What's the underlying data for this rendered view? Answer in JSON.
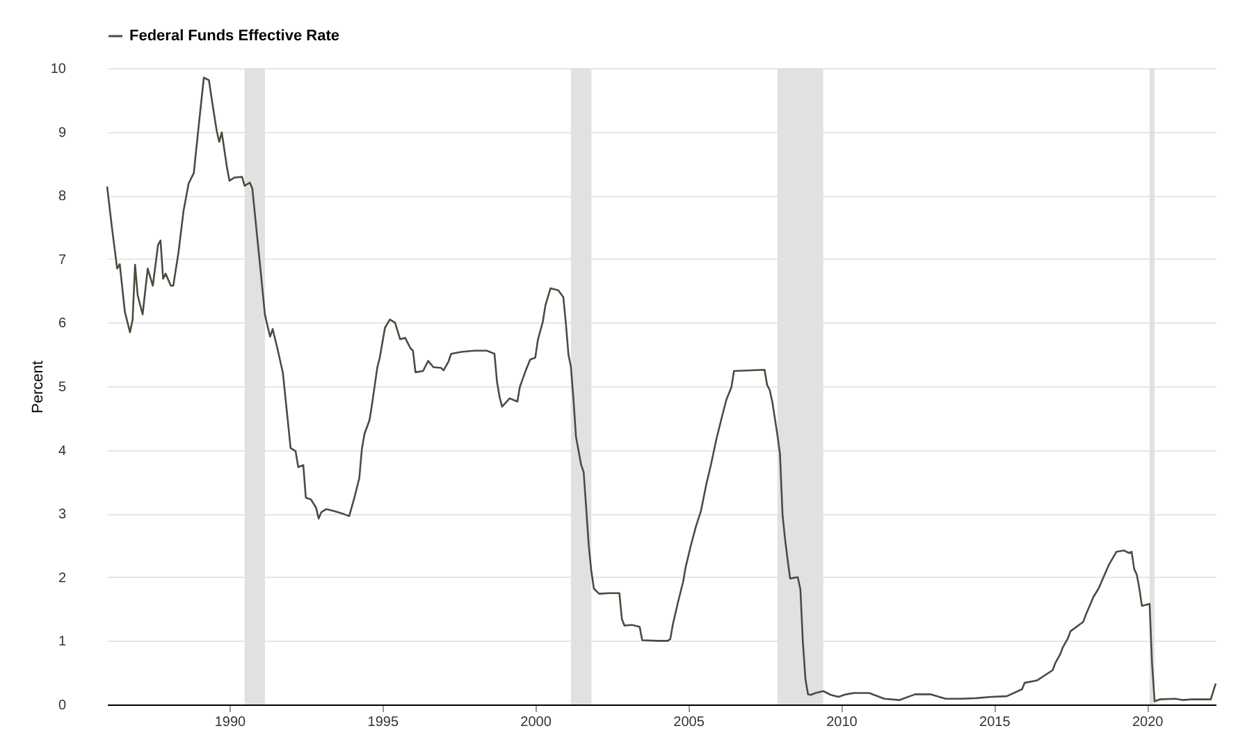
{
  "chart_data": {
    "type": "line",
    "ylabel": "Percent",
    "legend": "top left",
    "grid": "y",
    "line_style": "solid",
    "xlim": [
      "1986-01",
      "2022-04"
    ],
    "xticks": [
      "1990",
      "1995",
      "2000",
      "2005",
      "2010",
      "2015",
      "2020"
    ],
    "ylim": [
      0,
      10
    ],
    "yticks": [
      0,
      1,
      2,
      3,
      4,
      5,
      6,
      7,
      8,
      9,
      10
    ],
    "bands": [
      {
        "axis": "x",
        "from": "1990-07",
        "to": "1991-03",
        "color": "#e1e1e1"
      },
      {
        "axis": "x",
        "from": "2001-03",
        "to": "2001-11",
        "color": "#e1e1e1"
      },
      {
        "axis": "x",
        "from": "2007-12",
        "to": "2009-06",
        "color": "#e1e1e1"
      },
      {
        "axis": "x",
        "from": "2020-02",
        "to": "2020-04",
        "color": "#e1e1e1"
      }
    ],
    "series": [
      {
        "name": "Federal Funds Effective Rate",
        "color": "#4b4b3f",
        "x": [
          "1986-01",
          "1986-03",
          "1986-05",
          "1986-06",
          "1986-08",
          "1986-10",
          "1986-11",
          "1986-12",
          "1987-01",
          "1987-03",
          "1987-05",
          "1987-07",
          "1987-09",
          "1987-10",
          "1987-11",
          "1987-12",
          "1988-02",
          "1988-03",
          "1988-05",
          "1988-07",
          "1988-09",
          "1988-11",
          "1989-01",
          "1989-03",
          "1989-05",
          "1989-06",
          "1989-08",
          "1989-09",
          "1989-10",
          "1989-12",
          "1990-01",
          "1990-03",
          "1990-06",
          "1990-07",
          "1990-09",
          "1990-10",
          "1990-12",
          "1991-01",
          "1991-03",
          "1991-05",
          "1991-06",
          "1991-08",
          "1991-10",
          "1991-12",
          "1992-01",
          "1992-03",
          "1992-04",
          "1992-06",
          "1992-07",
          "1992-09",
          "1992-11",
          "1992-12",
          "1993-01",
          "1993-03",
          "1993-06",
          "1993-10",
          "1993-12",
          "1994-02",
          "1994-04",
          "1994-05",
          "1994-06",
          "1994-08",
          "1994-09",
          "1994-11",
          "1994-12",
          "1995-02",
          "1995-04",
          "1995-06",
          "1995-08",
          "1995-10",
          "1995-12",
          "1996-01",
          "1996-02",
          "1996-05",
          "1996-07",
          "1996-09",
          "1996-12",
          "1997-01",
          "1997-03",
          "1997-04",
          "1997-08",
          "1998-01",
          "1998-06",
          "1998-09",
          "1998-10",
          "1998-11",
          "1998-12",
          "1999-03",
          "1999-06",
          "1999-07",
          "1999-09",
          "1999-11",
          "2000-01",
          "2000-02",
          "2000-04",
          "2000-05",
          "2000-07",
          "2000-10",
          "2000-12",
          "2001-01",
          "2001-02",
          "2001-03",
          "2001-04",
          "2001-05",
          "2001-07",
          "2001-08",
          "2001-09",
          "2001-10",
          "2001-11",
          "2001-12",
          "2002-02",
          "2002-06",
          "2002-10",
          "2002-11",
          "2002-12",
          "2003-03",
          "2003-06",
          "2003-07",
          "2004-01",
          "2004-05",
          "2004-06",
          "2004-07",
          "2004-09",
          "2004-11",
          "2004-12",
          "2005-02",
          "2005-04",
          "2005-06",
          "2005-08",
          "2005-10",
          "2005-12",
          "2006-02",
          "2006-04",
          "2006-06",
          "2006-07",
          "2007-07",
          "2007-08",
          "2007-09",
          "2007-10",
          "2007-12",
          "2008-01",
          "2008-02",
          "2008-03",
          "2008-04",
          "2008-05",
          "2008-08",
          "2008-09",
          "2008-10",
          "2008-11",
          "2008-12",
          "2009-01",
          "2009-03",
          "2009-06",
          "2009-09",
          "2009-12",
          "2010-03",
          "2010-06",
          "2010-12",
          "2011-06",
          "2011-12",
          "2012-06",
          "2012-12",
          "2013-06",
          "2013-12",
          "2014-06",
          "2014-12",
          "2015-06",
          "2015-12",
          "2016-01",
          "2016-06",
          "2016-12",
          "2017-01",
          "2017-03",
          "2017-04",
          "2017-06",
          "2017-07",
          "2017-12",
          "2018-01",
          "2018-04",
          "2018-06",
          "2018-07",
          "2018-10",
          "2019-01",
          "2019-04",
          "2019-06",
          "2019-07",
          "2019-08",
          "2019-09",
          "2019-10",
          "2019-11",
          "2020-02",
          "2020-03",
          "2020-04",
          "2020-06",
          "2020-12",
          "2021-03",
          "2021-06",
          "2021-09",
          "2021-12",
          "2022-02",
          "2022-03",
          "2022-04"
        ],
        "values": [
          8.14,
          7.48,
          6.85,
          6.92,
          6.17,
          5.85,
          6.04,
          6.91,
          6.43,
          6.13,
          6.85,
          6.58,
          7.22,
          7.29,
          6.69,
          6.77,
          6.58,
          6.58,
          7.09,
          7.75,
          8.19,
          8.35,
          9.12,
          9.85,
          9.81,
          9.53,
          9.02,
          8.84,
          8.99,
          8.45,
          8.23,
          8.28,
          8.29,
          8.15,
          8.2,
          8.11,
          7.31,
          6.91,
          6.12,
          5.78,
          5.9,
          5.57,
          5.21,
          4.43,
          4.03,
          3.98,
          3.73,
          3.76,
          3.25,
          3.22,
          3.09,
          2.92,
          3.02,
          3.07,
          3.04,
          2.99,
          2.96,
          3.25,
          3.56,
          4.01,
          4.25,
          4.47,
          4.73,
          5.29,
          5.45,
          5.92,
          6.05,
          6.0,
          5.74,
          5.76,
          5.6,
          5.56,
          5.22,
          5.24,
          5.4,
          5.3,
          5.29,
          5.25,
          5.39,
          5.51,
          5.54,
          5.56,
          5.56,
          5.51,
          5.07,
          4.83,
          4.68,
          4.81,
          4.76,
          4.99,
          5.22,
          5.42,
          5.45,
          5.73,
          6.02,
          6.27,
          6.54,
          6.51,
          6.4,
          5.98,
          5.49,
          5.31,
          4.8,
          4.21,
          3.77,
          3.65,
          3.07,
          2.49,
          2.09,
          1.82,
          1.74,
          1.75,
          1.75,
          1.34,
          1.24,
          1.25,
          1.22,
          1.01,
          1.0,
          1.0,
          1.03,
          1.26,
          1.61,
          1.93,
          2.16,
          2.5,
          2.79,
          3.04,
          3.44,
          3.78,
          4.16,
          4.49,
          4.79,
          4.99,
          5.24,
          5.26,
          5.02,
          4.94,
          4.76,
          4.24,
          3.94,
          2.98,
          2.61,
          2.28,
          1.98,
          2.0,
          1.81,
          0.97,
          0.39,
          0.16,
          0.15,
          0.18,
          0.21,
          0.15,
          0.12,
          0.16,
          0.18,
          0.18,
          0.09,
          0.07,
          0.16,
          0.16,
          0.09,
          0.09,
          0.1,
          0.12,
          0.13,
          0.24,
          0.34,
          0.38,
          0.54,
          0.65,
          0.79,
          0.9,
          1.04,
          1.15,
          1.3,
          1.41,
          1.69,
          1.82,
          1.91,
          2.19,
          2.4,
          2.42,
          2.38,
          2.4,
          2.13,
          2.04,
          1.83,
          1.55,
          1.58,
          0.65,
          0.05,
          0.08,
          0.09,
          0.07,
          0.08,
          0.08,
          0.08,
          0.08,
          0.2,
          0.33
        ]
      }
    ]
  }
}
